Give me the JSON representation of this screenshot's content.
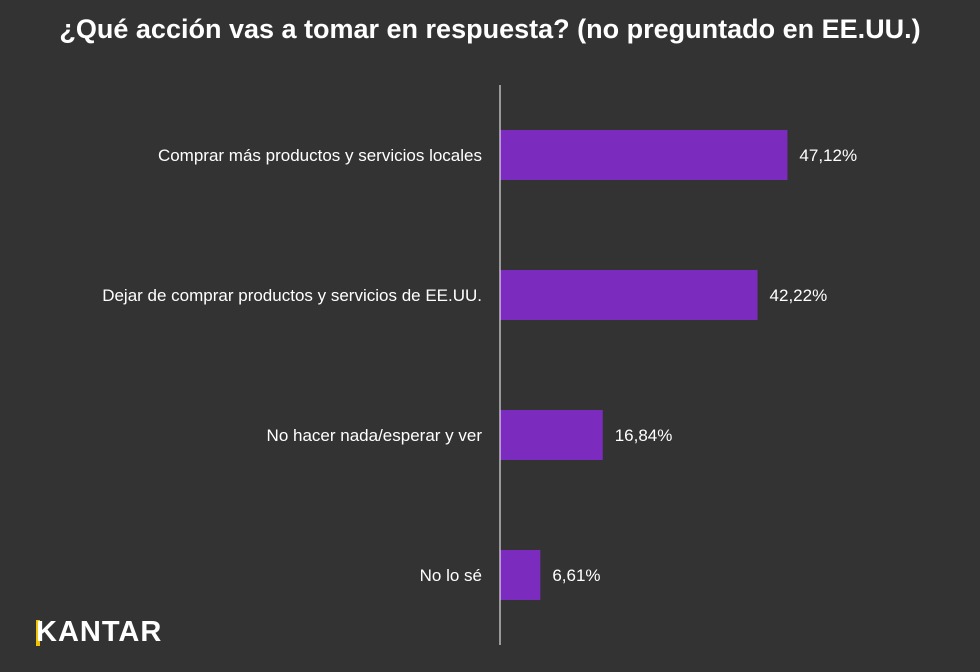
{
  "chart_data": {
    "type": "bar",
    "orientation": "horizontal",
    "title": "¿Qué acción vas a tomar en respuesta? (no preguntado en EE.UU.)",
    "categories": [
      "Comprar más productos y servicios locales",
      "Dejar de comprar productos y servicios de EE.UU.",
      "No hacer nada/esperar y ver",
      "No lo sé"
    ],
    "values": [
      47.12,
      42.22,
      16.84,
      6.61
    ],
    "value_labels": [
      "47,12%",
      "42,22%",
      "16,84%",
      "6,61%"
    ],
    "xlim": [
      0,
      100
    ],
    "xlabel": "",
    "ylabel": "",
    "grid": false,
    "legend": "none",
    "bar_color": "#7b2cbf",
    "background_color": "#333333",
    "text_color": "#ffffff",
    "axis_color": "#ffffff"
  },
  "brand": {
    "logo_text": "KANTAR",
    "accent_color": "#f2c200"
  }
}
